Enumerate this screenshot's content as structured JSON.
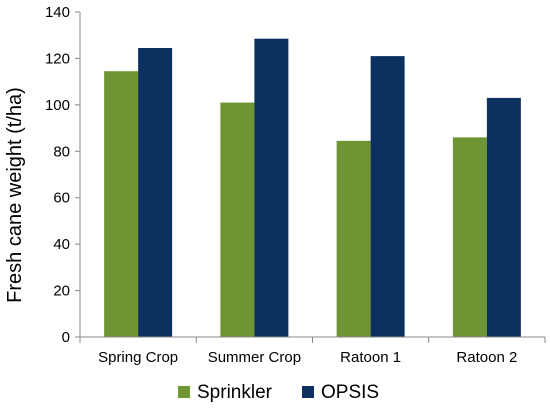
{
  "chart_data": {
    "type": "bar",
    "categories": [
      "Spring Crop",
      "Summer Crop",
      "Ratoon 1",
      "Ratoon 2"
    ],
    "series": [
      {
        "name": "Sprinkler",
        "color": "#6e9433",
        "values": [
          114.5,
          101,
          84.5,
          86
        ]
      },
      {
        "name": "OPSIS",
        "color": "#0c3160",
        "values": [
          124.5,
          128.5,
          121,
          103
        ]
      }
    ],
    "ylabel": "Fresh cane weight (t/ha)",
    "ylim": [
      0,
      140
    ],
    "yticks": [
      0,
      20,
      40,
      60,
      80,
      100,
      120,
      140
    ],
    "grid": false,
    "legend_position": "bottom"
  }
}
